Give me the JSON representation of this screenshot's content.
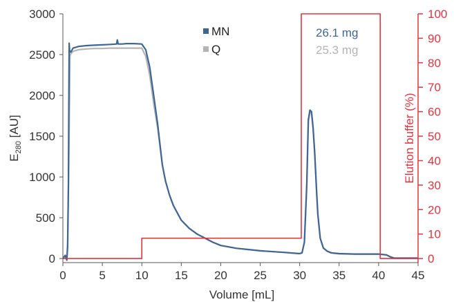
{
  "chart_data": {
    "type": "line",
    "title": "",
    "xlabel": "Volume [mL]",
    "ylabel": "E",
    "ylabel_sub": "280",
    "ylabel_unit": " [AU]",
    "y2label": "Elution buffer (%)",
    "xlim": [
      0,
      45
    ],
    "ylim": [
      -50,
      3000
    ],
    "y2lim": [
      -1.6667,
      100
    ],
    "xticks": [
      "0",
      "5",
      "10",
      "15",
      "20",
      "25",
      "30",
      "35",
      "40",
      "45"
    ],
    "yticks": [
      "0",
      "500",
      "1000",
      "1500",
      "2000",
      "2500",
      "3000"
    ],
    "y2ticks": [
      "0",
      "10",
      "20",
      "30",
      "40",
      "50",
      "60",
      "70",
      "80",
      "90",
      "100"
    ],
    "grid": false,
    "legend_position": "top-center",
    "colors": {
      "MN": "#3d6696",
      "Q": "#b4b4b4",
      "buffer": "#e8323c"
    },
    "series": [
      {
        "name": "MN",
        "axis": "left",
        "x": [
          0,
          0.3,
          0.4,
          0.5,
          0.6,
          0.7,
          0.8,
          0.85,
          1.0,
          1.3,
          2,
          3,
          4,
          5,
          6,
          6.8,
          6.9,
          7.0,
          7.5,
          8,
          9,
          10,
          10.5,
          11,
          11.5,
          12,
          12.3,
          12.6,
          13,
          13.5,
          14,
          15,
          16,
          17,
          18,
          19,
          20,
          22,
          25,
          28,
          30,
          30.3,
          30.6,
          30.9,
          31.1,
          31.3,
          31.5,
          31.7,
          31.9,
          32.1,
          32.3,
          32.6,
          33,
          33.5,
          34,
          35,
          37,
          40,
          40.5,
          41,
          41.5,
          42,
          43,
          45
        ],
        "y": [
          0,
          40,
          10,
          -20,
          150,
          900,
          2640,
          2550,
          2530,
          2580,
          2600,
          2610,
          2615,
          2620,
          2625,
          2630,
          2680,
          2630,
          2630,
          2635,
          2635,
          2630,
          2560,
          2350,
          2000,
          1650,
          1400,
          1150,
          950,
          780,
          650,
          470,
          370,
          300,
          250,
          200,
          160,
          125,
          95,
          75,
          60,
          70,
          200,
          900,
          1700,
          1820,
          1800,
          1600,
          1300,
          900,
          550,
          250,
          130,
          90,
          70,
          60,
          55,
          55,
          50,
          45,
          20,
          5,
          5,
          5
        ]
      },
      {
        "name": "Q",
        "axis": "left",
        "x": [
          0,
          0.3,
          0.5,
          0.6,
          0.75,
          0.9,
          1.0,
          1.3,
          2,
          3,
          4,
          5,
          6,
          7,
          8,
          9,
          9.5,
          10,
          10.5,
          11,
          11.5,
          12,
          12.3,
          12.6,
          13,
          13.5,
          14,
          15,
          16,
          17,
          18,
          19,
          20,
          22,
          25,
          28,
          30,
          30.3,
          30.6,
          30.9,
          31.1,
          31.3,
          31.5,
          31.7,
          31.9,
          32.1,
          32.3,
          32.6,
          33,
          33.5,
          34,
          35,
          37,
          40,
          40.5,
          41,
          41.5,
          42,
          43,
          45
        ],
        "y": [
          0,
          30,
          -10,
          200,
          1200,
          2480,
          2510,
          2540,
          2560,
          2570,
          2575,
          2575,
          2580,
          2580,
          2580,
          2580,
          2580,
          2580,
          2480,
          2250,
          1900,
          1600,
          1380,
          1150,
          950,
          780,
          650,
          470,
          370,
          300,
          250,
          200,
          160,
          125,
          95,
          75,
          60,
          70,
          200,
          880,
          1680,
          1800,
          1780,
          1590,
          1290,
          890,
          540,
          245,
          128,
          88,
          68,
          58,
          53,
          53,
          48,
          43,
          18,
          5,
          5,
          5
        ]
      },
      {
        "name": "Elution buffer",
        "axis": "right",
        "x": [
          0,
          10,
          10,
          30.2,
          30.2,
          40.2,
          40.2,
          45
        ],
        "y": [
          0,
          0,
          8.3,
          8.3,
          100,
          100,
          0,
          0
        ]
      }
    ],
    "annotations": [
      {
        "text": "26.1 mg",
        "series": "MN"
      },
      {
        "text": "25.3 mg",
        "series": "Q"
      }
    ]
  },
  "legend": {
    "items": [
      {
        "label": "MN",
        "color": "#3d6696"
      },
      {
        "label": "Q",
        "color": "#b4b4b4"
      }
    ]
  }
}
